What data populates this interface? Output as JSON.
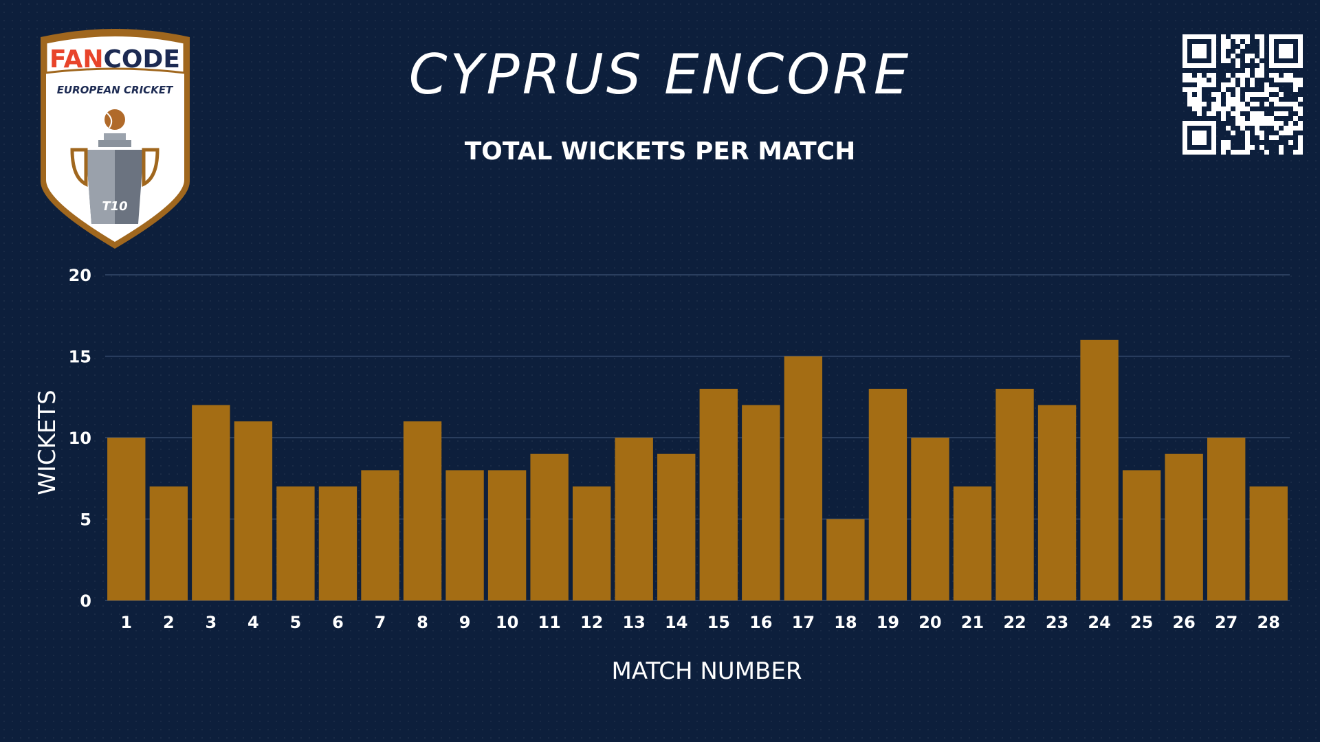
{
  "header": {
    "title": "CYPRUS ENCORE",
    "logo_text_top": "FANCODE",
    "logo_text_mid": "EUROPEAN CRICKET",
    "logo_text_badge": "T10"
  },
  "colors": {
    "background": "#0d1f3c",
    "bar": "#a46d14",
    "gridline": "#34496a",
    "text": "#ffffff",
    "logo_red": "#e8442b",
    "logo_navy": "#1c2a52"
  },
  "chart_data": {
    "type": "bar",
    "title": "TOTAL WICKETS PER MATCH",
    "xlabel": "MATCH NUMBER",
    "ylabel": "WICKETS",
    "ylim": [
      0,
      20
    ],
    "yticks": [
      "0",
      "5",
      "10",
      "15",
      "20"
    ],
    "grid": true,
    "categories": [
      "1",
      "2",
      "3",
      "4",
      "5",
      "6",
      "7",
      "8",
      "9",
      "10",
      "11",
      "12",
      "13",
      "14",
      "15",
      "16",
      "17",
      "18",
      "19",
      "20",
      "21",
      "22",
      "23",
      "24",
      "25",
      "26",
      "27",
      "28"
    ],
    "values": [
      10,
      7,
      12,
      11,
      7,
      7,
      8,
      11,
      8,
      8,
      9,
      7,
      10,
      9,
      13,
      12,
      15,
      5,
      13,
      10,
      7,
      13,
      12,
      16,
      8,
      9,
      10,
      7
    ]
  }
}
